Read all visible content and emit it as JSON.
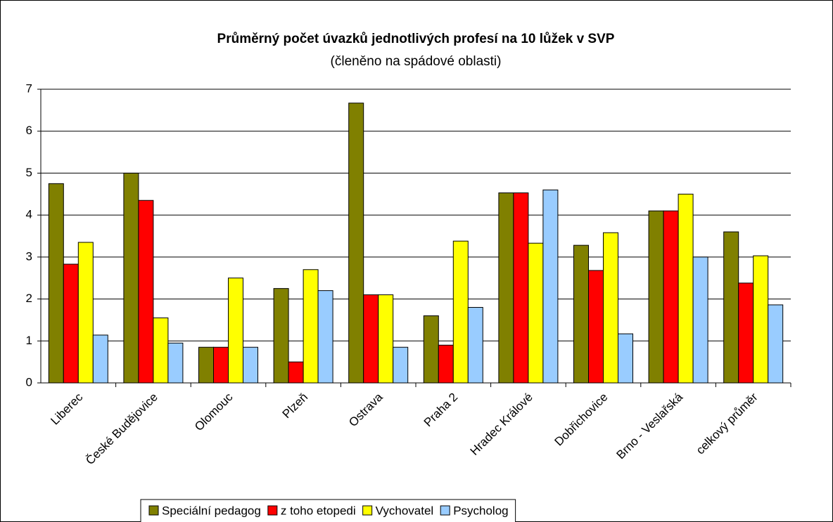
{
  "chart_data": {
    "type": "bar",
    "title": "Průměrný počet úvazků jednotlivých profesí na 10 lůžek v SVP",
    "subtitle": "(členěno na spádové oblasti)",
    "categories": [
      "Liberec",
      "České Budějovice",
      "Olomouc",
      "Plzeň",
      "Ostrava",
      "Praha 2",
      "Hradec Králové",
      "Dobřichovice",
      "Brno - Veslařská",
      "celkový průměr"
    ],
    "series": [
      {
        "name": "Speciální pedagog",
        "color": "#808000",
        "values": [
          4.75,
          5.0,
          0.85,
          2.25,
          6.67,
          1.6,
          4.53,
          3.28,
          4.1,
          3.6
        ]
      },
      {
        "name": "z toho etopedi",
        "color": "#ff0000",
        "values": [
          2.83,
          4.35,
          0.85,
          0.5,
          2.1,
          0.9,
          4.53,
          2.68,
          4.1,
          2.38
        ]
      },
      {
        "name": "Vychovatel",
        "color": "#ffff00",
        "values": [
          3.35,
          1.55,
          2.5,
          2.7,
          2.1,
          3.38,
          3.33,
          3.58,
          4.5,
          3.03
        ]
      },
      {
        "name": "Psycholog",
        "color": "#99ccff",
        "values": [
          1.14,
          0.95,
          0.85,
          2.2,
          0.85,
          1.8,
          4.6,
          1.17,
          3.0,
          1.86
        ]
      }
    ],
    "ylim": [
      0,
      7
    ],
    "yticks": [
      0,
      1,
      2,
      3,
      4,
      5,
      6,
      7
    ],
    "grid": true,
    "legend": "bottom"
  }
}
